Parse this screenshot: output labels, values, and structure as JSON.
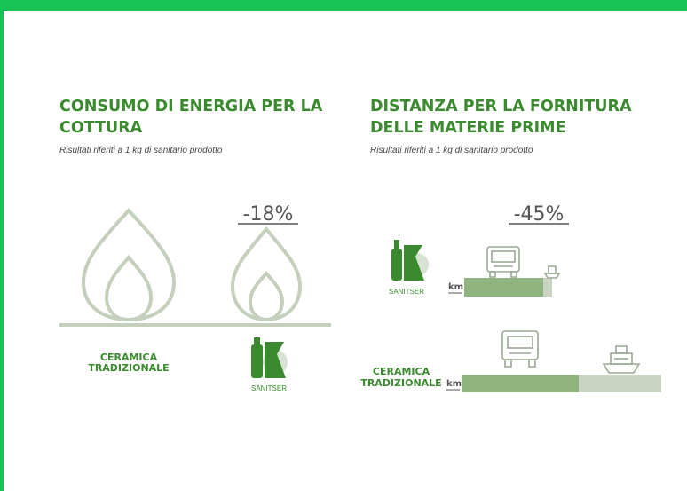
{
  "panels": [
    {
      "title": [
        "CONSUMO DI ENERGIA PER LA",
        "COTTURA"
      ],
      "subtitle": "Risultati riferiti a 1 kg di sanitario prodotto",
      "reduction": "-18%",
      "traditional": [
        "CERAMICA",
        "TRADIZIONALE"
      ],
      "brand": "SANITSER"
    },
    {
      "title": [
        "DISTANZA PER LA FORNITURA",
        "DELLE MATERIE PRIME"
      ],
      "subtitle": "Risultati riferiti a 1 kg di sanitario prodotto",
      "reduction": "-45%",
      "traditional": [
        "CERAMICA",
        "TRADIZIONALE"
      ],
      "brand": "SANITSER",
      "unit": "km"
    }
  ]
}
